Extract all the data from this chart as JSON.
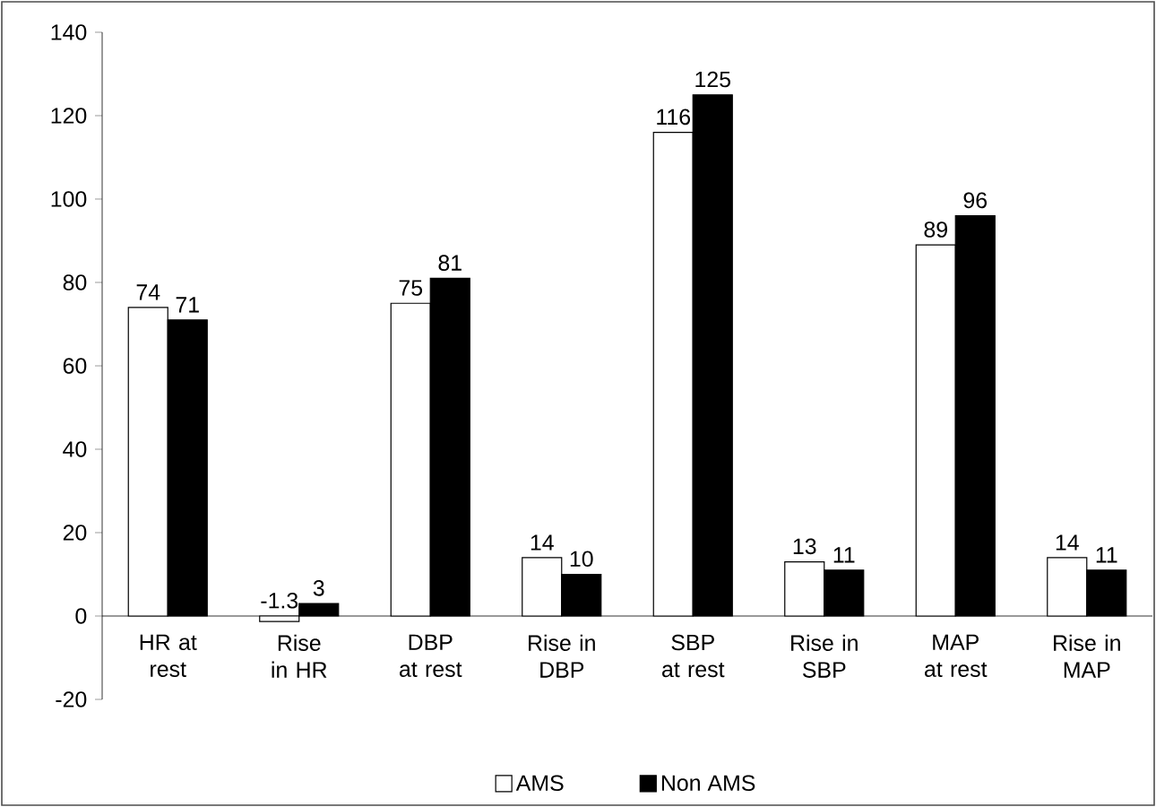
{
  "chart_data": {
    "type": "bar",
    "categories": [
      "HR at rest",
      "Rise in HR",
      "DBP at rest",
      "Rise in DBP",
      "SBP at rest",
      "Rise in SBP",
      "MAP at rest",
      "Rise in MAP"
    ],
    "series": [
      {
        "name": "AMS",
        "color": "#ffffff",
        "values": [
          74,
          -1.3,
          75,
          14,
          116,
          13,
          89,
          14
        ]
      },
      {
        "name": "Non AMS",
        "color": "#000000",
        "values": [
          71,
          3,
          81,
          10,
          125,
          11,
          96,
          11
        ]
      }
    ],
    "ylim": [
      -20,
      140
    ],
    "yticks": [
      -20,
      0,
      20,
      40,
      60,
      80,
      100,
      120,
      140
    ],
    "data_labels": true,
    "grid": false,
    "legend": "bottom"
  }
}
